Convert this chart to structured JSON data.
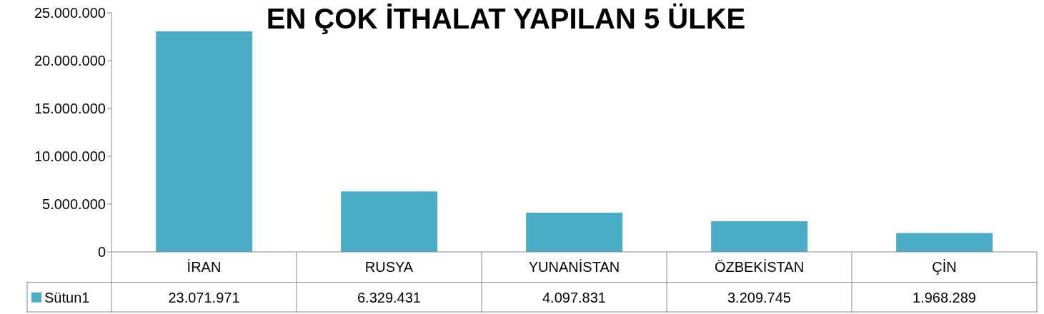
{
  "chart_data": {
    "type": "bar",
    "title": "EN ÇOK İTHALAT YAPILAN 5 ÜLKE",
    "categories": [
      "İRAN",
      "RUSYA",
      "YUNANİSTAN",
      "ÖZBEKİSTAN",
      "ÇİN"
    ],
    "series": [
      {
        "name": "Sütun1",
        "color": "#4bacc6",
        "values": [
          23071971,
          6329431,
          4097831,
          3209745,
          1968289
        ],
        "value_labels": [
          "23.071.971",
          "6.329.431",
          "4.097.831",
          "3.209.745",
          "1.968.289"
        ]
      }
    ],
    "ylim": [
      0,
      25000000
    ],
    "yticks": [
      {
        "value": 0,
        "label": "0"
      },
      {
        "value": 5000000,
        "label": "5.000.000"
      },
      {
        "value": 10000000,
        "label": "10.000.000"
      },
      {
        "value": 15000000,
        "label": "15.000.000"
      },
      {
        "value": 20000000,
        "label": "20.000.000"
      },
      {
        "value": 25000000,
        "label": "25.000.000"
      }
    ],
    "grid": false,
    "legend": "bottom"
  }
}
